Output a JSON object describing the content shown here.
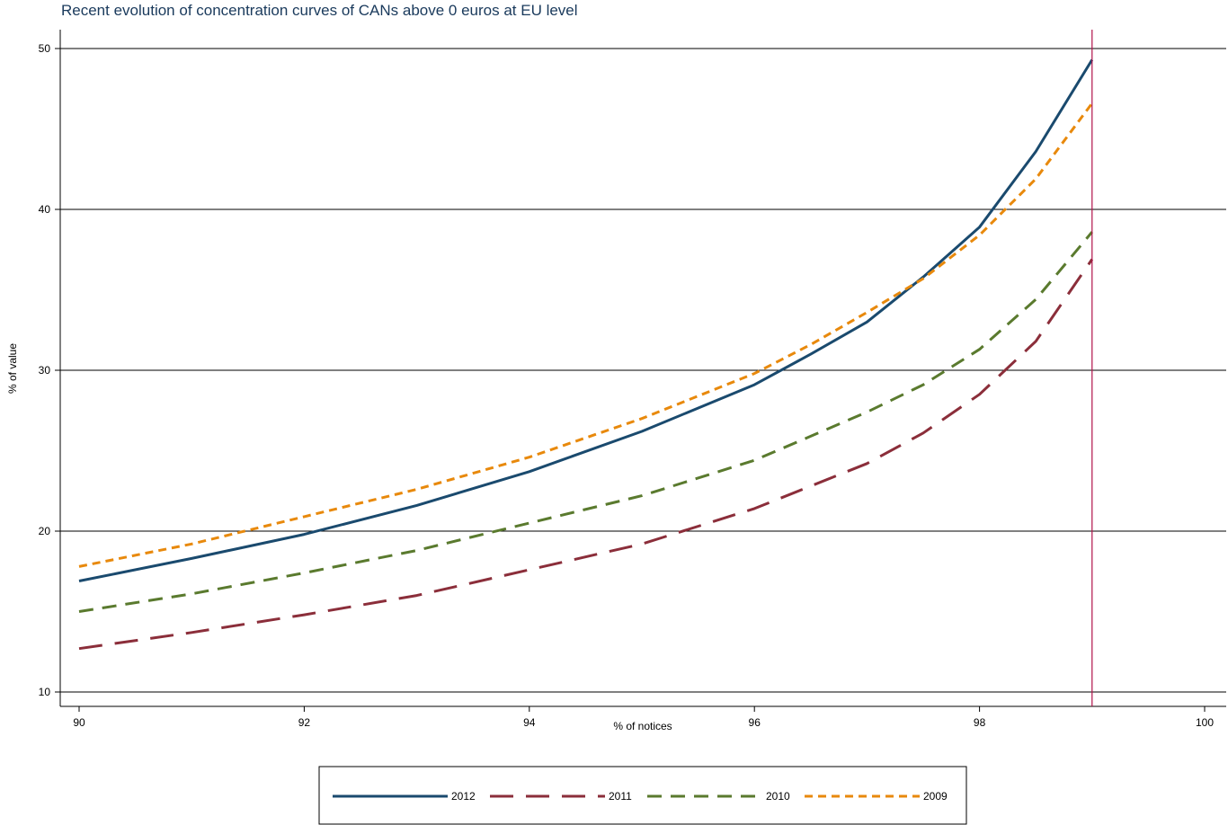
{
  "chart_data": {
    "type": "line",
    "title": "Recent evolution of concentration curves of CANs above 0 euros at EU level",
    "xlabel": "% of notices",
    "ylabel": "% of value",
    "xlim": [
      90,
      100
    ],
    "ylim": [
      10,
      50
    ],
    "xticks": [
      90,
      92,
      94,
      96,
      98,
      100
    ],
    "yticks": [
      10,
      20,
      30,
      40,
      50
    ],
    "grid": "horizontal",
    "legend_position": "bottom",
    "reference_line": {
      "x": 99,
      "color": "#b0124a"
    },
    "series": [
      {
        "name": "2012",
        "color": "#1a4a6e",
        "dash": "solid",
        "x": [
          90,
          91,
          92,
          93,
          94,
          95,
          96,
          96.5,
          97,
          97.5,
          98,
          98.5,
          99
        ],
        "y": [
          16.9,
          18.3,
          19.8,
          21.6,
          23.7,
          26.2,
          29.1,
          31.0,
          33.0,
          35.8,
          38.9,
          43.6,
          49.3
        ]
      },
      {
        "name": "2011",
        "color": "#8b2e3a",
        "dash": "longdash",
        "x": [
          90,
          91,
          92,
          93,
          94,
          95,
          96,
          96.5,
          97,
          97.5,
          98,
          98.5,
          99
        ],
        "y": [
          12.7,
          13.7,
          14.8,
          16.0,
          17.6,
          19.2,
          21.4,
          22.8,
          24.2,
          26.1,
          28.5,
          31.8,
          36.9
        ]
      },
      {
        "name": "2010",
        "color": "#5a7a2e",
        "dash": "dash",
        "x": [
          90,
          91,
          92,
          93,
          94,
          95,
          96,
          96.5,
          97,
          97.5,
          98,
          98.5,
          99
        ],
        "y": [
          15.0,
          16.1,
          17.4,
          18.8,
          20.5,
          22.2,
          24.4,
          25.9,
          27.4,
          29.1,
          31.3,
          34.4,
          38.6
        ]
      },
      {
        "name": "2009",
        "color": "#e8890c",
        "dash": "shortdash",
        "x": [
          90,
          91,
          92,
          93,
          94,
          95,
          96,
          96.5,
          97,
          97.5,
          98,
          98.5,
          99
        ],
        "y": [
          17.8,
          19.2,
          20.9,
          22.6,
          24.6,
          27.0,
          29.8,
          31.6,
          33.6,
          35.7,
          38.4,
          41.9,
          46.6
        ]
      }
    ]
  }
}
